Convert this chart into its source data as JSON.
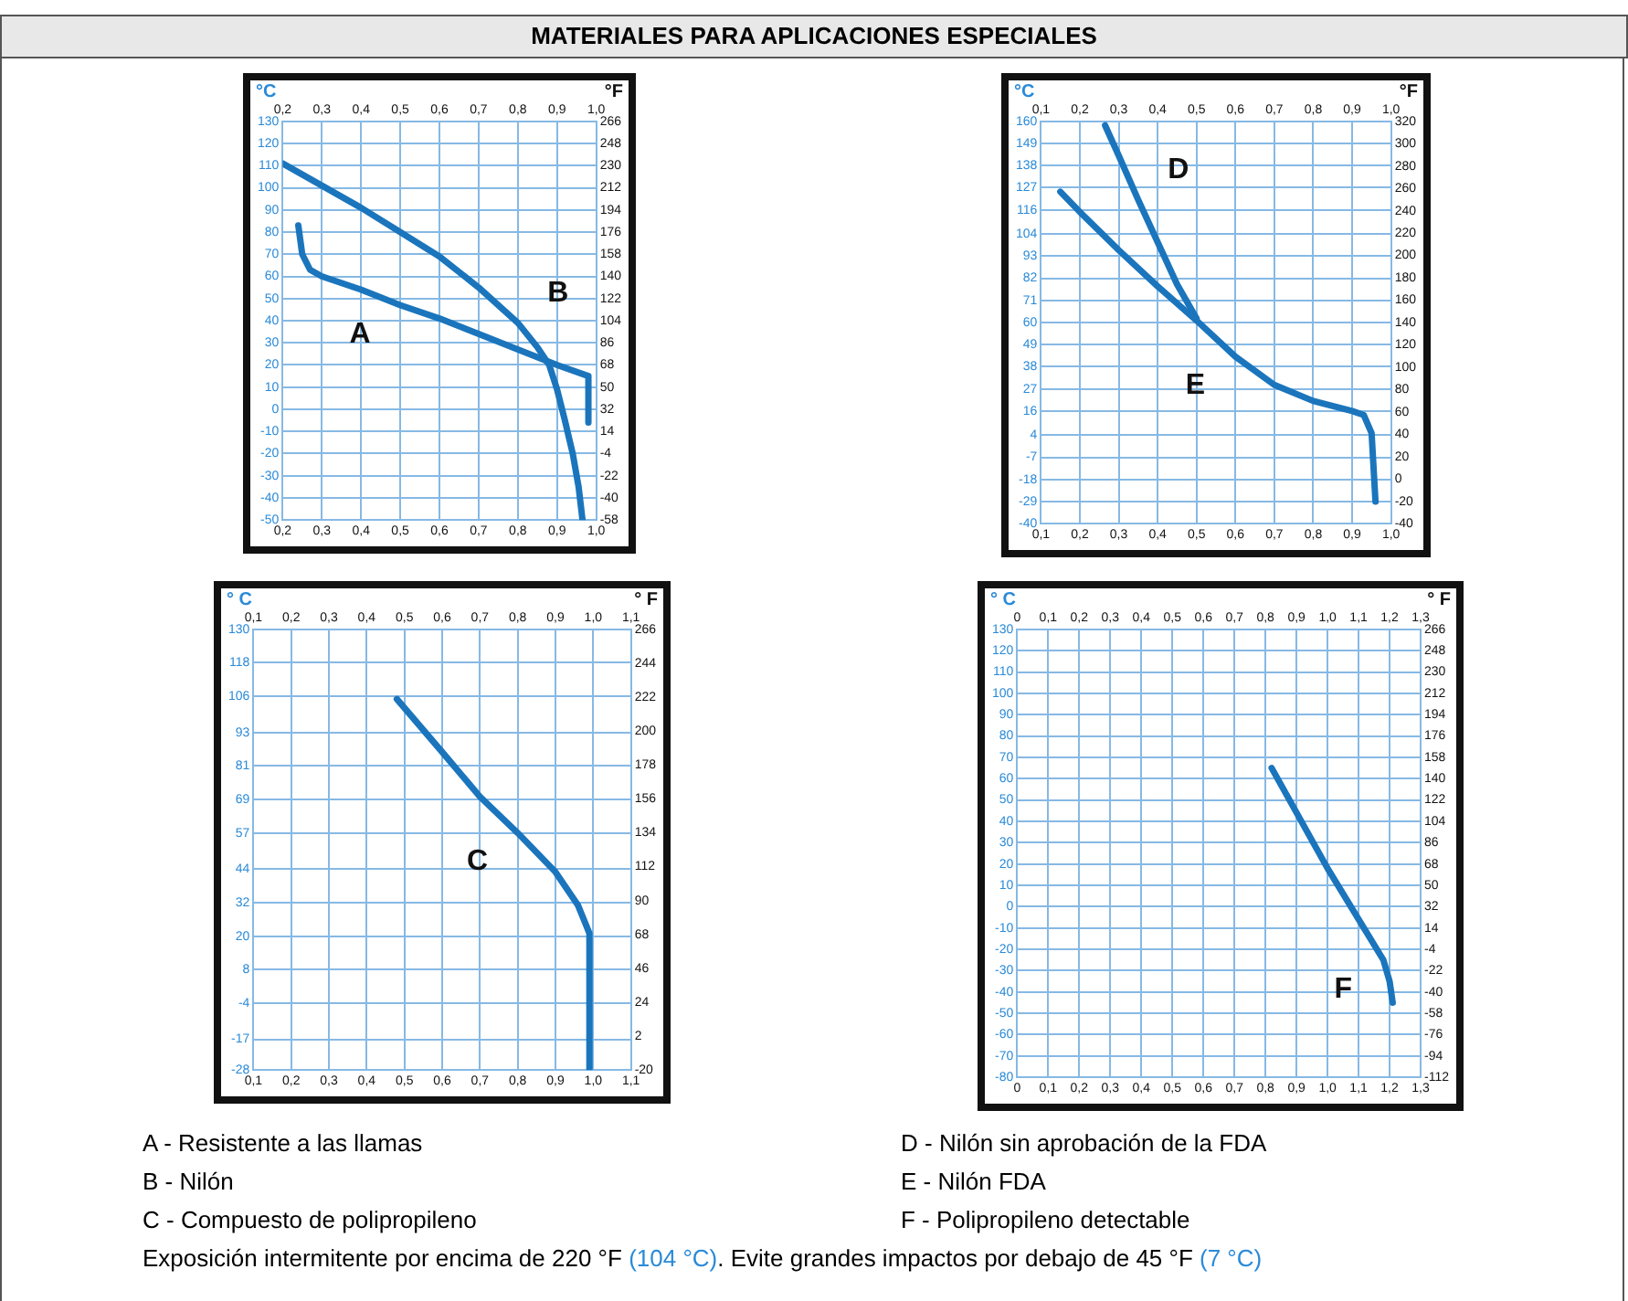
{
  "chart_data": [
    {
      "type": "line",
      "title": "MATERIALES PARA APLICACIONES ESPECIALES",
      "ylabel": "°C",
      "y2label": "°F",
      "grid": true,
      "xlim": [
        0.2,
        1.0
      ],
      "xticks": [
        {
          "value": 0.2,
          "label": "0,2"
        },
        {
          "value": 0.3,
          "label": "0,3"
        },
        {
          "value": 0.4,
          "label": "0,4"
        },
        {
          "value": 0.5,
          "label": "0,5"
        },
        {
          "value": 0.6,
          "label": "0,6"
        },
        {
          "value": 0.7,
          "label": "0,7"
        },
        {
          "value": 0.8,
          "label": "0,8"
        },
        {
          "value": 0.9,
          "label": "0,9"
        },
        {
          "value": 1.0,
          "label": "1,0"
        }
      ],
      "x2lim": [
        0.2,
        1.0
      ],
      "x2ticks": [
        {
          "value": 0.2,
          "label": "0,2"
        },
        {
          "value": 0.3,
          "label": "0,3"
        },
        {
          "value": 0.4,
          "label": "0,4"
        },
        {
          "value": 0.5,
          "label": "0,5"
        },
        {
          "value": 0.6,
          "label": "0,6"
        },
        {
          "value": 0.7,
          "label": "0,7"
        },
        {
          "value": 0.8,
          "label": "0,8"
        },
        {
          "value": 0.9,
          "label": "0,9"
        },
        {
          "value": 1.0,
          "label": "1,0"
        }
      ],
      "ylim": [
        -50,
        130
      ],
      "yticks": [
        130,
        120,
        110,
        100,
        90,
        80,
        70,
        60,
        50,
        40,
        30,
        20,
        10,
        0,
        -10,
        -20,
        -30,
        -40,
        -50
      ],
      "y2lim": [
        -58,
        266
      ],
      "y2ticks": [
        266,
        248,
        230,
        212,
        194,
        176,
        158,
        140,
        122,
        104,
        86,
        68,
        50,
        32,
        14,
        -4,
        -22,
        -40,
        -58
      ],
      "series": [
        {
          "name": "B",
          "color": "#1b75bc",
          "x": [
            0.2,
            0.3,
            0.4,
            0.5,
            0.6,
            0.7,
            0.8,
            0.85,
            0.88,
            0.9,
            0.92,
            0.94,
            0.955,
            0.965
          ],
          "values": [
            111,
            101,
            91,
            80,
            69,
            55,
            39,
            28,
            20,
            9,
            -5,
            -20,
            -35,
            -50
          ]
        },
        {
          "name": "A",
          "color": "#1b75bc",
          "x": [
            0.24,
            0.25,
            0.27,
            0.3,
            0.4,
            0.5,
            0.6,
            0.7,
            0.8,
            0.9,
            0.98,
            0.98
          ],
          "values": [
            83,
            70,
            63,
            60,
            54,
            47,
            41,
            34,
            27,
            20,
            15,
            -6
          ]
        }
      ]
    },
    {
      "type": "line",
      "ylabel": "°C",
      "y2label": "°F",
      "grid": true,
      "xlim": [
        0.1,
        1.0
      ],
      "xticks": [
        {
          "value": 0.1,
          "label": "0,1"
        },
        {
          "value": 0.2,
          "label": "0,2"
        },
        {
          "value": 0.3,
          "label": "0,3"
        },
        {
          "value": 0.4,
          "label": "0,4"
        },
        {
          "value": 0.5,
          "label": "0,5"
        },
        {
          "value": 0.6,
          "label": "0,6"
        },
        {
          "value": 0.7,
          "label": "0,7"
        },
        {
          "value": 0.8,
          "label": "0,8"
        },
        {
          "value": 0.9,
          "label": "0,9"
        },
        {
          "value": 1.0,
          "label": "1,0"
        }
      ],
      "x2lim": [
        0.1,
        1.0
      ],
      "x2ticks": [
        {
          "value": 0.1,
          "label": "0,1"
        },
        {
          "value": 0.2,
          "label": "0,2"
        },
        {
          "value": 0.3,
          "label": "0,3"
        },
        {
          "value": 0.4,
          "label": "0,4"
        },
        {
          "value": 0.5,
          "label": "0,5"
        },
        {
          "value": 0.6,
          "label": "0,6"
        },
        {
          "value": 0.7,
          "label": "0,7"
        },
        {
          "value": 0.8,
          "label": "0,8"
        },
        {
          "value": 0.9,
          "label": "0,9"
        },
        {
          "value": 1.0,
          "label": "1,0"
        }
      ],
      "ylim": [
        -40,
        160
      ],
      "yticks": [
        160,
        149,
        138,
        127,
        116,
        104,
        93,
        82,
        71,
        60,
        49,
        38,
        27,
        16,
        4,
        -7,
        -18,
        -29,
        -40
      ],
      "y2lim": [
        -40,
        320
      ],
      "y2ticks": [
        320,
        300,
        280,
        260,
        240,
        220,
        200,
        180,
        160,
        140,
        120,
        100,
        80,
        60,
        40,
        20,
        0,
        -20,
        -40
      ],
      "series": [
        {
          "name": "D",
          "color": "#1b75bc",
          "x": [
            0.265,
            0.3,
            0.35,
            0.4,
            0.45,
            0.5
          ],
          "values": [
            158,
            143,
            121,
            100,
            79,
            62
          ]
        },
        {
          "name": "E",
          "color": "#1b75bc",
          "x": [
            0.15,
            0.2,
            0.3,
            0.4,
            0.5,
            0.6,
            0.7,
            0.8,
            0.9,
            0.93,
            0.95,
            0.96
          ],
          "values": [
            125,
            115,
            96,
            78,
            61,
            43,
            29,
            21,
            16,
            14,
            5,
            -29
          ]
        }
      ]
    },
    {
      "type": "line",
      "ylabel": "° C",
      "y2label": "° F",
      "grid": true,
      "xlim": [
        0.1,
        1.1
      ],
      "xticks": [
        {
          "value": 0.1,
          "label": "0,1"
        },
        {
          "value": 0.2,
          "label": "0,2"
        },
        {
          "value": 0.3,
          "label": "0,3"
        },
        {
          "value": 0.4,
          "label": "0,4"
        },
        {
          "value": 0.5,
          "label": "0,5"
        },
        {
          "value": 0.6,
          "label": "0,6"
        },
        {
          "value": 0.7,
          "label": "0,7"
        },
        {
          "value": 0.8,
          "label": "0,8"
        },
        {
          "value": 0.9,
          "label": "0,9"
        },
        {
          "value": 1.0,
          "label": "1,0"
        },
        {
          "value": 1.1,
          "label": "1,1"
        }
      ],
      "x2lim": [
        0.1,
        1.1
      ],
      "x2ticks": [
        {
          "value": 0.1,
          "label": "0,1"
        },
        {
          "value": 0.2,
          "label": "0,2"
        },
        {
          "value": 0.3,
          "label": "0,3"
        },
        {
          "value": 0.4,
          "label": "0,4"
        },
        {
          "value": 0.5,
          "label": "0,5"
        },
        {
          "value": 0.6,
          "label": "0,6"
        },
        {
          "value": 0.7,
          "label": "0,7"
        },
        {
          "value": 0.8,
          "label": "0,8"
        },
        {
          "value": 0.9,
          "label": "0,9"
        },
        {
          "value": 1.0,
          "label": "1,0"
        },
        {
          "value": 1.1,
          "label": "1,1"
        }
      ],
      "ylim": [
        -28,
        130
      ],
      "yticks": [
        130,
        118,
        106,
        93,
        81,
        69,
        57,
        44,
        32,
        20,
        8,
        -4,
        -17,
        -28
      ],
      "y2lim": [
        -20,
        266
      ],
      "y2ticks": [
        266,
        244,
        222,
        200,
        178,
        156,
        134,
        112,
        90,
        68,
        46,
        24,
        2,
        -20
      ],
      "series": [
        {
          "name": "C",
          "color": "#1b75bc",
          "x": [
            0.48,
            0.6,
            0.7,
            0.8,
            0.9,
            0.96,
            0.99,
            0.99
          ],
          "values": [
            105,
            86,
            70,
            57,
            43,
            31,
            21,
            -28
          ]
        }
      ]
    },
    {
      "type": "line",
      "ylabel": "° C",
      "y2label": "° F",
      "grid": true,
      "xlim": [
        0,
        1.3
      ],
      "xticks": [
        0,
        {
          "value": 0.1,
          "label": "0,1"
        },
        {
          "value": 0.2,
          "label": "0,2"
        },
        {
          "value": 0.3,
          "label": "0,3"
        },
        {
          "value": 0.4,
          "label": "0,4"
        },
        {
          "value": 0.5,
          "label": "0,5"
        },
        {
          "value": 0.6,
          "label": "0,6"
        },
        {
          "value": 0.7,
          "label": "0,7"
        },
        {
          "value": 0.8,
          "label": "0,8"
        },
        {
          "value": 0.9,
          "label": "0,9"
        },
        {
          "value": 1.0,
          "label": "1,0"
        },
        {
          "value": 1.1,
          "label": "1,1"
        },
        {
          "value": 1.2,
          "label": "1,2"
        },
        {
          "value": 1.3,
          "label": "1,3"
        }
      ],
      "x2lim": [
        0,
        1.3
      ],
      "x2ticks": [
        0,
        {
          "value": 0.1,
          "label": "0,1"
        },
        {
          "value": 0.2,
          "label": "0,2"
        },
        {
          "value": 0.3,
          "label": "0,3"
        },
        {
          "value": 0.4,
          "label": "0,4"
        },
        {
          "value": 0.5,
          "label": "0,5"
        },
        {
          "value": 0.6,
          "label": "0,6"
        },
        {
          "value": 0.7,
          "label": "0,7"
        },
        {
          "value": 0.8,
          "label": "0,8"
        },
        {
          "value": 0.9,
          "label": "0,9"
        },
        {
          "value": 1.0,
          "label": "1,0"
        },
        {
          "value": 1.1,
          "label": "1,1"
        },
        {
          "value": 1.2,
          "label": "1,2"
        },
        {
          "value": 1.3,
          "label": "1,3"
        }
      ],
      "ylim": [
        -80,
        130
      ],
      "yticks": [
        130,
        120,
        110,
        100,
        90,
        80,
        70,
        60,
        50,
        40,
        30,
        20,
        10,
        0,
        -10,
        -20,
        -30,
        -40,
        -50,
        -60,
        -70,
        -80
      ],
      "y2lim": [
        -112,
        266
      ],
      "y2ticks": [
        266,
        248,
        230,
        212,
        194,
        176,
        158,
        140,
        122,
        104,
        86,
        68,
        50,
        32,
        14,
        -4,
        -22,
        -40,
        -58,
        -76,
        -94,
        -112
      ],
      "series": [
        {
          "name": "F",
          "color": "#1b75bc",
          "x": [
            0.82,
            1.0,
            1.18,
            1.2,
            1.21
          ],
          "values": [
            65,
            18,
            -25,
            -35,
            -45
          ]
        }
      ]
    },
    {
      "type": "other",
      "annotations": [
        "A - Resistente a las llamas",
        "D - Nilón sin aprobación de la FDA",
        "B - Nilón",
        "E - Nilón FDA",
        "C - Compuesto de polipropileno",
        "F - Polipropileno detectable",
        "Exposición intermitente por encima de 220 °F (104 °C). Evite grandes impactos por debajo de 45 °F (7 °C)"
      ]
    }
  ]
}
